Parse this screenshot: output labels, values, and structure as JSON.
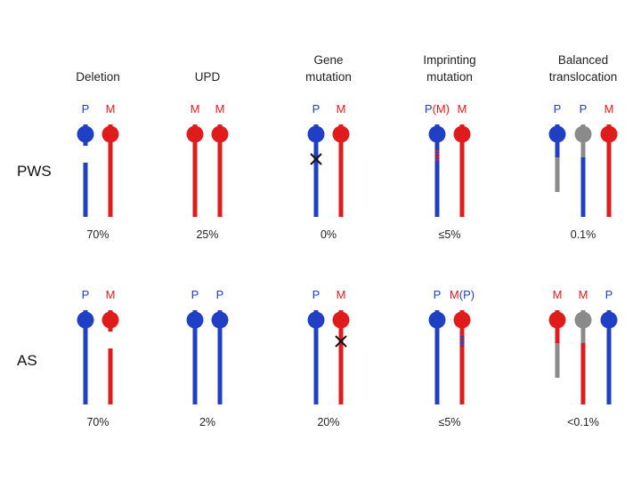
{
  "colors": {
    "paternal": "#1f3fc4",
    "maternal": "#e01b1b",
    "translocated": "#8a8a8a",
    "text": "#222222",
    "mark": "#111111"
  },
  "columns": [
    {
      "header_lines": [
        "Deletion"
      ]
    },
    {
      "header_lines": [
        "UPD"
      ]
    },
    {
      "header_lines": [
        "Gene",
        "mutation"
      ]
    },
    {
      "header_lines": [
        "Imprinting",
        "mutation"
      ]
    },
    {
      "header_lines": [
        "Balanced",
        "translocation"
      ]
    }
  ],
  "rows": [
    {
      "label": "PWS",
      "panels": [
        {
          "percent": "70%",
          "labels": [
            {
              "parts": [
                {
                  "text": "P",
                  "color": "paternal"
                }
              ]
            },
            {
              "parts": [
                {
                  "text": "M",
                  "color": "maternal"
                }
              ]
            }
          ],
          "chromosomes": [
            {
              "color": "paternal",
              "style": "deletion"
            },
            {
              "color": "maternal",
              "style": "normal"
            }
          ]
        },
        {
          "percent": "25%",
          "labels": [
            {
              "parts": [
                {
                  "text": "M",
                  "color": "maternal"
                }
              ]
            },
            {
              "parts": [
                {
                  "text": "M",
                  "color": "maternal"
                }
              ]
            }
          ],
          "chromosomes": [
            {
              "color": "maternal",
              "style": "normal"
            },
            {
              "color": "maternal",
              "style": "normal"
            }
          ]
        },
        {
          "percent": "0%",
          "labels": [
            {
              "parts": [
                {
                  "text": "P",
                  "color": "paternal"
                }
              ]
            },
            {
              "parts": [
                {
                  "text": "M",
                  "color": "maternal"
                }
              ]
            }
          ],
          "chromosomes": [
            {
              "color": "paternal",
              "style": "mutation"
            },
            {
              "color": "maternal",
              "style": "normal"
            }
          ]
        },
        {
          "percent": "≤5%",
          "labels": [
            {
              "parts": [
                {
                  "text": "P",
                  "color": "paternal"
                },
                {
                  "text": "(M)",
                  "color": "maternal"
                }
              ]
            },
            {
              "parts": [
                {
                  "text": "M",
                  "color": "maternal"
                }
              ]
            }
          ],
          "chromosomes": [
            {
              "color": "paternal",
              "style": "imprint",
              "stripe": "maternal"
            },
            {
              "color": "maternal",
              "style": "normal"
            }
          ]
        },
        {
          "percent": "0.1%",
          "labels": [
            {
              "parts": [
                {
                  "text": "P",
                  "color": "paternal"
                }
              ]
            },
            {
              "parts": [
                {
                  "text": "P",
                  "color": "paternal"
                }
              ]
            },
            {
              "parts": [
                {
                  "text": "M",
                  "color": "maternal"
                }
              ]
            }
          ],
          "chromosomes": [
            {
              "color": "paternal",
              "style": "trans-short",
              "tail": "translocated"
            },
            {
              "color": "translocated",
              "style": "trans-long",
              "tail": "paternal"
            },
            {
              "color": "maternal",
              "style": "normal"
            }
          ]
        }
      ]
    },
    {
      "label": "AS",
      "panels": [
        {
          "percent": "70%",
          "labels": [
            {
              "parts": [
                {
                  "text": "P",
                  "color": "paternal"
                }
              ]
            },
            {
              "parts": [
                {
                  "text": "M",
                  "color": "maternal"
                }
              ]
            }
          ],
          "chromosomes": [
            {
              "color": "paternal",
              "style": "normal"
            },
            {
              "color": "maternal",
              "style": "deletion"
            }
          ]
        },
        {
          "percent": "2%",
          "labels": [
            {
              "parts": [
                {
                  "text": "P",
                  "color": "paternal"
                }
              ]
            },
            {
              "parts": [
                {
                  "text": "P",
                  "color": "paternal"
                }
              ]
            }
          ],
          "chromosomes": [
            {
              "color": "paternal",
              "style": "normal"
            },
            {
              "color": "paternal",
              "style": "normal"
            }
          ]
        },
        {
          "percent": "20%",
          "labels": [
            {
              "parts": [
                {
                  "text": "P",
                  "color": "paternal"
                }
              ]
            },
            {
              "parts": [
                {
                  "text": "M",
                  "color": "maternal"
                }
              ]
            }
          ],
          "chromosomes": [
            {
              "color": "paternal",
              "style": "normal"
            },
            {
              "color": "maternal",
              "style": "mutation"
            }
          ]
        },
        {
          "percent": "≤5%",
          "labels": [
            {
              "parts": [
                {
                  "text": "P",
                  "color": "paternal"
                }
              ]
            },
            {
              "parts": [
                {
                  "text": "M",
                  "color": "maternal"
                },
                {
                  "text": "(P)",
                  "color": "paternal"
                }
              ]
            }
          ],
          "chromosomes": [
            {
              "color": "paternal",
              "style": "normal"
            },
            {
              "color": "maternal",
              "style": "imprint",
              "stripe": "paternal"
            }
          ]
        },
        {
          "percent": "<0.1%",
          "labels": [
            {
              "parts": [
                {
                  "text": "M",
                  "color": "maternal"
                }
              ]
            },
            {
              "parts": [
                {
                  "text": "M",
                  "color": "maternal"
                }
              ]
            },
            {
              "parts": [
                {
                  "text": "P",
                  "color": "paternal"
                }
              ]
            }
          ],
          "chromosomes": [
            {
              "color": "maternal",
              "style": "trans-short",
              "tail": "translocated"
            },
            {
              "color": "translocated",
              "style": "trans-long",
              "tail": "maternal"
            },
            {
              "color": "paternal",
              "style": "normal"
            }
          ]
        }
      ]
    }
  ]
}
